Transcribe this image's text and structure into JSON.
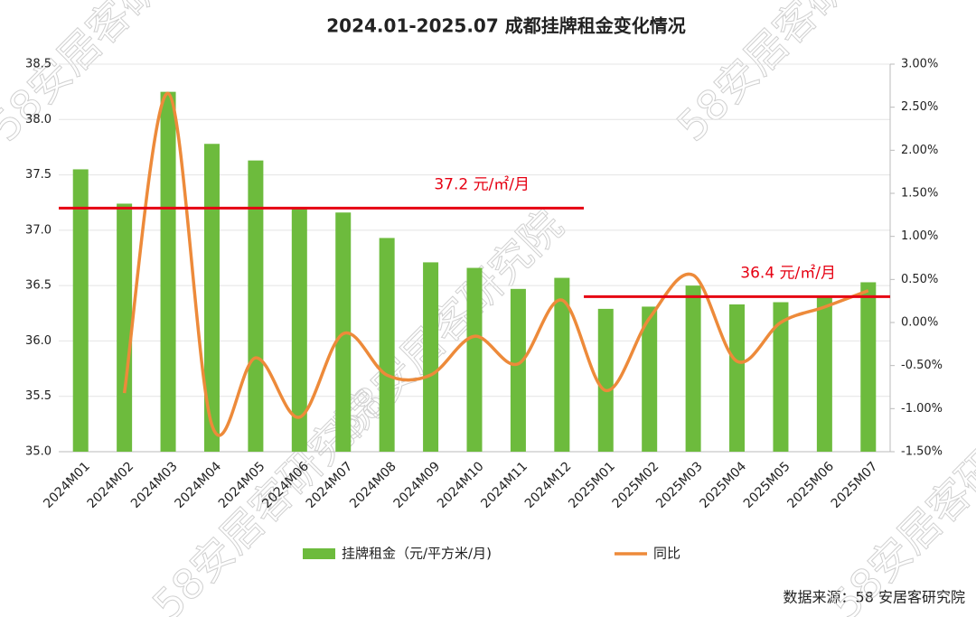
{
  "chart_data": {
    "type": "bar-line",
    "title": "2024.01-2025.07 成都挂牌租金变化情况",
    "categories": [
      "2024M01",
      "2024M02",
      "2024M03",
      "2024M04",
      "2024M05",
      "2024M06",
      "2024M07",
      "2024M08",
      "2024M09",
      "2024M10",
      "2024M11",
      "2024M12",
      "2025M01",
      "2025M02",
      "2025M03",
      "2025M04",
      "2025M05",
      "2025M06",
      "2025M07"
    ],
    "series": [
      {
        "name": "挂牌租金（元/平方米/月)",
        "type": "bar",
        "color": "#6dbb3d",
        "values": [
          37.55,
          37.24,
          38.25,
          37.78,
          37.63,
          37.2,
          37.16,
          36.93,
          36.71,
          36.66,
          36.47,
          36.57,
          36.29,
          36.31,
          36.5,
          36.33,
          36.35,
          36.4,
          36.53
        ]
      },
      {
        "name": "同比",
        "type": "line",
        "axis": "y2",
        "color": "#ed8a3a",
        "values": [
          null,
          -0.82,
          2.66,
          -1.19,
          -0.41,
          -1.1,
          -0.13,
          -0.61,
          -0.61,
          -0.16,
          -0.48,
          0.26,
          -0.79,
          0.05,
          0.55,
          -0.45,
          0,
          0.18,
          0.37
        ]
      }
    ],
    "ylim": [
      35,
      38.5
    ],
    "yticks": [
      {
        "value": 35,
        "label": "35.0"
      },
      {
        "value": 35.5,
        "label": "35.5"
      },
      {
        "value": 36,
        "label": "36.0"
      },
      {
        "value": 36.5,
        "label": "36.5"
      },
      {
        "value": 37,
        "label": "37.0"
      },
      {
        "value": 37.5,
        "label": "37.5"
      },
      {
        "value": 38,
        "label": "38.0"
      },
      {
        "value": 38.5,
        "label": "38.5"
      }
    ],
    "y2lim": [
      -1.5,
      3
    ],
    "y2ticks": [
      {
        "value": -1.5,
        "label": "-1.50%"
      },
      {
        "value": -1,
        "label": "-1.00%"
      },
      {
        "value": -0.5,
        "label": "-0.50%"
      },
      {
        "value": 0,
        "label": "0.00%"
      },
      {
        "value": 0.5,
        "label": "0.50%"
      },
      {
        "value": 1,
        "label": "1.00%"
      },
      {
        "value": 1.5,
        "label": "1.50%"
      },
      {
        "value": 2,
        "label": "2.00%"
      },
      {
        "value": 2.5,
        "label": "2.50%"
      },
      {
        "value": 3,
        "label": "3.00%"
      }
    ],
    "grid": true,
    "reference_lines": [
      {
        "value": 37.2,
        "label": "37.2 元/㎡/月",
        "from": "2024M01",
        "to": "2024M12",
        "color": "#e60012"
      },
      {
        "value": 36.4,
        "label": "36.4 元/㎡/月",
        "from": "2025M01",
        "to": "2025M07",
        "color": "#e60012"
      }
    ],
    "source": "数据来源：58 安居客研究院",
    "watermark": "58安居客研究院"
  }
}
